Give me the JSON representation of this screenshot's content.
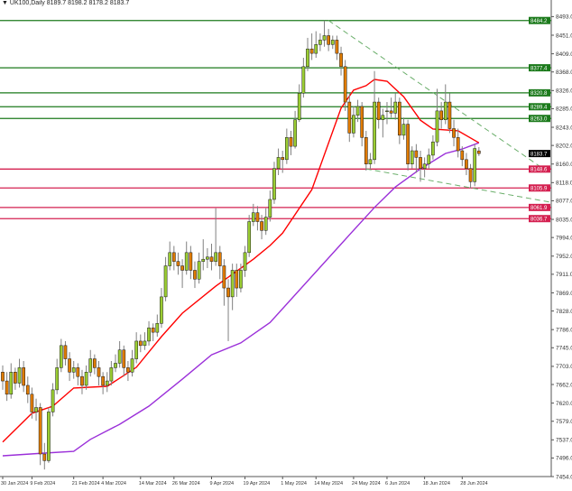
{
  "title": {
    "arrow": "▼",
    "symbol": "UK100,Daily",
    "ohlc": "8189.7 8198.2 8178.2 8183.7"
  },
  "chart_data": {
    "type": "candlestick",
    "symbol": "UK100",
    "timeframe": "Daily",
    "ylim": [
      7454.0,
      8535.0
    ],
    "grid": false,
    "colors": {
      "bull": "#9ACD32",
      "bear": "#E07B00",
      "outline": "#1a1a1a",
      "wick": "#808080",
      "ma_fast": "#FF0000",
      "ma_slow": "#9B30D9",
      "resistance": "#1B7A1B",
      "support": "#D42050",
      "trendline": "#6AAE6A"
    },
    "y_ticks": [
      "8493.0",
      "8451.0",
      "8409.0",
      "8368.0",
      "8326.0",
      "8285.0",
      "8243.0",
      "8202.0",
      "8160.0",
      "8118.0",
      "8077.0",
      "8035.0",
      "7994.0",
      "7952.0",
      "7911.0",
      "7869.0",
      "7828.0",
      "7786.0",
      "7745.0",
      "7703.0",
      "7662.0",
      "7620.0",
      "7579.0",
      "7537.0",
      "7496.0",
      "7454.0"
    ],
    "x_ticks": [
      {
        "i": 0,
        "label": "30 Jan 2024"
      },
      {
        "i": 7,
        "label": "9 Feb 2024"
      },
      {
        "i": 17,
        "label": "21 Feb 2024"
      },
      {
        "i": 24,
        "label": "4 Mar 2024"
      },
      {
        "i": 33,
        "label": "14 Mar 2024"
      },
      {
        "i": 41,
        "label": "26 Mar 2024"
      },
      {
        "i": 50,
        "label": "9 Apr 2024"
      },
      {
        "i": 58,
        "label": "19 Apr 2024"
      },
      {
        "i": 67,
        "label": "1 May 2024"
      },
      {
        "i": 75,
        "label": "14 May 2024"
      },
      {
        "i": 84,
        "label": "24 May 2024"
      },
      {
        "i": 92,
        "label": "6 Jun 2024"
      },
      {
        "i": 101,
        "label": "18 Jun 2024"
      },
      {
        "i": 110,
        "label": "28 Jun 2024"
      }
    ],
    "current_price": "8183.7",
    "levels": [
      {
        "value": "8484.2",
        "kind": "resistance"
      },
      {
        "value": "8377.4",
        "kind": "resistance"
      },
      {
        "value": "8320.8",
        "kind": "resistance"
      },
      {
        "value": "8289.4",
        "kind": "resistance"
      },
      {
        "value": "8263.0",
        "kind": "resistance"
      },
      {
        "value": "8148.6",
        "kind": "support"
      },
      {
        "value": "8105.9",
        "kind": "support"
      },
      {
        "value": "8061.9",
        "kind": "support"
      },
      {
        "value": "8036.7",
        "kind": "support"
      }
    ],
    "trendlines": [
      {
        "from": [
          78,
          8484.2
        ],
        "to": [
          131,
          8139
        ]
      },
      {
        "from": [
          87,
          8149
        ],
        "to": [
          131,
          8074
        ]
      }
    ],
    "ma_fast": [
      [
        0,
        7532
      ],
      [
        7,
        7597
      ],
      [
        12,
        7613
      ],
      [
        17,
        7654
      ],
      [
        25,
        7658
      ],
      [
        32,
        7701
      ],
      [
        38,
        7770
      ],
      [
        43,
        7823
      ],
      [
        51,
        7884
      ],
      [
        60,
        7945
      ],
      [
        64,
        7976
      ],
      [
        67,
        8004
      ],
      [
        74,
        8102
      ],
      [
        81,
        8286
      ],
      [
        84,
        8327
      ],
      [
        87,
        8337
      ],
      [
        89,
        8351
      ],
      [
        92,
        8347
      ],
      [
        96,
        8312
      ],
      [
        100,
        8259
      ],
      [
        103,
        8239
      ],
      [
        109,
        8235
      ],
      [
        114,
        8208
      ]
    ],
    "ma_slow": [
      [
        0,
        7501
      ],
      [
        10,
        7507
      ],
      [
        17,
        7511
      ],
      [
        21,
        7538
      ],
      [
        28,
        7572
      ],
      [
        35,
        7613
      ],
      [
        43,
        7674
      ],
      [
        50,
        7729
      ],
      [
        57,
        7756
      ],
      [
        64,
        7802
      ],
      [
        83,
        8000
      ],
      [
        89,
        8062
      ],
      [
        94,
        8108
      ],
      [
        100,
        8149
      ],
      [
        106,
        8184
      ],
      [
        110,
        8194
      ],
      [
        114,
        8208
      ]
    ],
    "candles": [
      [
        7690,
        7705,
        7650,
        7670
      ],
      [
        7670,
        7690,
        7625,
        7640
      ],
      [
        7640,
        7710,
        7630,
        7690
      ],
      [
        7690,
        7700,
        7650,
        7665
      ],
      [
        7665,
        7720,
        7655,
        7700
      ],
      [
        7700,
        7715,
        7645,
        7660
      ],
      [
        7660,
        7680,
        7620,
        7640
      ],
      [
        7640,
        7655,
        7585,
        7600
      ],
      [
        7600,
        7630,
        7580,
        7610
      ],
      [
        7610,
        7620,
        7480,
        7505
      ],
      [
        7505,
        7530,
        7470,
        7490
      ],
      [
        7490,
        7610,
        7485,
        7600
      ],
      [
        7600,
        7665,
        7590,
        7650
      ],
      [
        7650,
        7720,
        7640,
        7700
      ],
      [
        7700,
        7765,
        7690,
        7750
      ],
      [
        7750,
        7760,
        7705,
        7720
      ],
      [
        7720,
        7735,
        7670,
        7690
      ],
      [
        7690,
        7715,
        7675,
        7700
      ],
      [
        7700,
        7710,
        7660,
        7680
      ],
      [
        7680,
        7695,
        7640,
        7660
      ],
      [
        7660,
        7705,
        7650,
        7690
      ],
      [
        7690,
        7740,
        7680,
        7720
      ],
      [
        7720,
        7730,
        7685,
        7700
      ],
      [
        7700,
        7715,
        7660,
        7680
      ],
      [
        7680,
        7690,
        7640,
        7660
      ],
      [
        7660,
        7690,
        7645,
        7670
      ],
      [
        7670,
        7715,
        7660,
        7700
      ],
      [
        7700,
        7730,
        7690,
        7710
      ],
      [
        7710,
        7760,
        7700,
        7740
      ],
      [
        7740,
        7750,
        7680,
        7700
      ],
      [
        7700,
        7715,
        7670,
        7690
      ],
      [
        7690,
        7740,
        7680,
        7720
      ],
      [
        7720,
        7780,
        7710,
        7760
      ],
      [
        7760,
        7775,
        7735,
        7750
      ],
      [
        7750,
        7780,
        7740,
        7760
      ],
      [
        7760,
        7805,
        7750,
        7790
      ],
      [
        7790,
        7800,
        7760,
        7780
      ],
      [
        7780,
        7820,
        7770,
        7800
      ],
      [
        7800,
        7880,
        7790,
        7860
      ],
      [
        7860,
        7950,
        7850,
        7930
      ],
      [
        7930,
        7985,
        7920,
        7960
      ],
      [
        7960,
        7975,
        7920,
        7940
      ],
      [
        7940,
        7960,
        7910,
        7930
      ],
      [
        7930,
        7945,
        7880,
        7920
      ],
      [
        7920,
        7985,
        7910,
        7960
      ],
      [
        7960,
        7975,
        7900,
        7920
      ],
      [
        7920,
        7940,
        7880,
        7900
      ],
      [
        7900,
        7960,
        7890,
        7940
      ],
      [
        7940,
        7990,
        7920,
        7945
      ],
      [
        7945,
        7970,
        7925,
        7950
      ],
      [
        7950,
        7980,
        7920,
        7940
      ],
      [
        7940,
        8060,
        7930,
        7960
      ],
      [
        7960,
        7975,
        7900,
        7930
      ],
      [
        7930,
        7945,
        7840,
        7880
      ],
      [
        7880,
        7900,
        7760,
        7860
      ],
      [
        7860,
        7935,
        7830,
        7920
      ],
      [
        7920,
        7935,
        7860,
        7880
      ],
      [
        7880,
        7935,
        7870,
        7920
      ],
      [
        7920,
        7975,
        7905,
        7960
      ],
      [
        7960,
        8045,
        7950,
        8030
      ],
      [
        8030,
        8070,
        8020,
        8050
      ],
      [
        8050,
        8065,
        8010,
        8030
      ],
      [
        8030,
        8045,
        7990,
        8010
      ],
      [
        8010,
        8060,
        8000,
        8040
      ],
      [
        8040,
        8100,
        8030,
        8080
      ],
      [
        8080,
        8165,
        8070,
        8150
      ],
      [
        8150,
        8195,
        8135,
        8175
      ],
      [
        8175,
        8190,
        8140,
        8170
      ],
      [
        8170,
        8240,
        8160,
        8220
      ],
      [
        8220,
        8235,
        8180,
        8200
      ],
      [
        8200,
        8280,
        8195,
        8260
      ],
      [
        8260,
        8340,
        8255,
        8320
      ],
      [
        8320,
        8400,
        8310,
        8380
      ],
      [
        8380,
        8445,
        8370,
        8420
      ],
      [
        8420,
        8455,
        8395,
        8410
      ],
      [
        8410,
        8460,
        8400,
        8430
      ],
      [
        8430,
        8455,
        8415,
        8440
      ],
      [
        8440,
        8484,
        8425,
        8450
      ],
      [
        8450,
        8465,
        8415,
        8430
      ],
      [
        8430,
        8450,
        8420,
        8440
      ],
      [
        8440,
        8450,
        8395,
        8410
      ],
      [
        8410,
        8425,
        8360,
        8380
      ],
      [
        8380,
        8395,
        8280,
        8300
      ],
      [
        8300,
        8320,
        8210,
        8230
      ],
      [
        8230,
        8290,
        8220,
        8270
      ],
      [
        8270,
        8305,
        8255,
        8290
      ],
      [
        8290,
        8300,
        8200,
        8220
      ],
      [
        8220,
        8235,
        8145,
        8160
      ],
      [
        8160,
        8185,
        8150,
        8170
      ],
      [
        8170,
        8370,
        8160,
        8300
      ],
      [
        8300,
        8310,
        8240,
        8260
      ],
      [
        8260,
        8285,
        8220,
        8270
      ],
      [
        8280,
        8300,
        8250,
        8280
      ],
      [
        8280,
        8310,
        8265,
        8275
      ],
      [
        8275,
        8320,
        8260,
        8300
      ],
      [
        8300,
        8310,
        8205,
        8225
      ],
      [
        8225,
        8265,
        8215,
        8250
      ],
      [
        8250,
        8260,
        8145,
        8160
      ],
      [
        8160,
        8200,
        8150,
        8190
      ],
      [
        8190,
        8205,
        8140,
        8175
      ],
      [
        8175,
        8190,
        8120,
        8150
      ],
      [
        8150,
        8175,
        8130,
        8160
      ],
      [
        8160,
        8195,
        8150,
        8180
      ],
      [
        8180,
        8225,
        8170,
        8210
      ],
      [
        8210,
        8330,
        8200,
        8280
      ],
      [
        8280,
        8300,
        8240,
        8260
      ],
      [
        8260,
        8340,
        8250,
        8300
      ],
      [
        8300,
        8320,
        8230,
        8240
      ],
      [
        8240,
        8260,
        8200,
        8220
      ],
      [
        8220,
        8240,
        8175,
        8190
      ],
      [
        8190,
        8200,
        8155,
        8170
      ],
      [
        8170,
        8185,
        8135,
        8150
      ],
      [
        8150,
        8160,
        8105,
        8120
      ],
      [
        8120,
        8205,
        8110,
        8195
      ],
      [
        8189.7,
        8198.2,
        8178.2,
        8183.7
      ]
    ]
  }
}
